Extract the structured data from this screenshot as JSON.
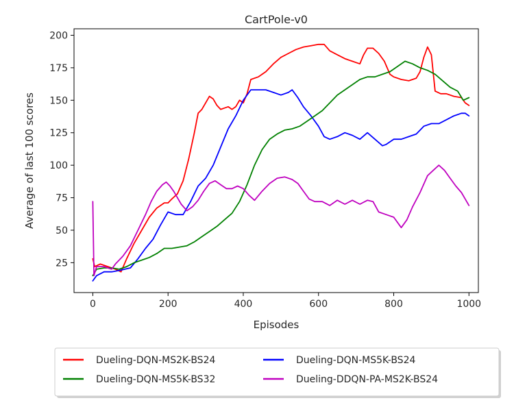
{
  "chart_data": {
    "type": "line",
    "title": "CartPole-v0",
    "xlabel": "Episodes",
    "ylabel": "Average of last 100 scores",
    "xlim": [
      -50,
      1025
    ],
    "ylim": [
      2,
      205
    ],
    "xticks": [
      0,
      200,
      400,
      600,
      800,
      1000
    ],
    "yticks": [
      25,
      50,
      75,
      100,
      125,
      150,
      175,
      200
    ],
    "grid": false,
    "legend_position": "below-plot",
    "series": [
      {
        "name": "Dueling-DQN-MS2K-BS24",
        "color": "#ff0000",
        "x": [
          0,
          5,
          20,
          40,
          60,
          75,
          90,
          110,
          130,
          150,
          170,
          190,
          200,
          210,
          225,
          240,
          255,
          270,
          280,
          290,
          300,
          310,
          320,
          330,
          340,
          350,
          360,
          370,
          380,
          390,
          400,
          410,
          420,
          440,
          460,
          480,
          500,
          520,
          540,
          560,
          580,
          600,
          615,
          630,
          650,
          670,
          690,
          710,
          720,
          730,
          745,
          760,
          775,
          790,
          800,
          820,
          840,
          860,
          870,
          880,
          890,
          900,
          910,
          925,
          940,
          960,
          980,
          990,
          1000
        ],
        "y": [
          28,
          22,
          24,
          22,
          20,
          18,
          28,
          40,
          50,
          60,
          67,
          71,
          71,
          74,
          78,
          88,
          105,
          125,
          140,
          143,
          148,
          153,
          151,
          146,
          143,
          144,
          145,
          143,
          145,
          150,
          148,
          155,
          166,
          168,
          172,
          178,
          183,
          186,
          189,
          191,
          192,
          193,
          193,
          188,
          185,
          182,
          180,
          178,
          185,
          190,
          190,
          186,
          180,
          170,
          168,
          166,
          165,
          167,
          172,
          183,
          191,
          185,
          157,
          155,
          155,
          153,
          152,
          148,
          146
        ]
      },
      {
        "name": "Dueling-DQN-MS5K-BS24",
        "color": "#0000ff",
        "x": [
          0,
          10,
          30,
          50,
          70,
          85,
          100,
          120,
          140,
          160,
          180,
          200,
          220,
          240,
          260,
          280,
          300,
          320,
          340,
          360,
          380,
          400,
          420,
          440,
          460,
          480,
          500,
          520,
          530,
          545,
          560,
          580,
          600,
          615,
          630,
          650,
          670,
          690,
          710,
          730,
          750,
          770,
          780,
          800,
          820,
          840,
          860,
          880,
          900,
          920,
          940,
          960,
          980,
          990,
          1000
        ],
        "y": [
          11,
          15,
          18,
          18,
          19,
          20,
          21,
          28,
          36,
          43,
          54,
          64,
          62,
          62,
          72,
          84,
          90,
          100,
          114,
          128,
          138,
          150,
          158,
          158,
          158,
          156,
          154,
          156,
          158,
          152,
          145,
          138,
          130,
          122,
          120,
          122,
          125,
          123,
          120,
          125,
          120,
          115,
          116,
          120,
          120,
          122,
          124,
          130,
          132,
          132,
          135,
          138,
          140,
          140,
          138
        ]
      },
      {
        "name": "Dueling-DQN-MS5K-BS32",
        "color": "#008000",
        "x": [
          0,
          10,
          30,
          50,
          70,
          90,
          110,
          130,
          150,
          170,
          190,
          210,
          230,
          250,
          270,
          290,
          310,
          330,
          350,
          370,
          390,
          410,
          430,
          450,
          470,
          490,
          510,
          530,
          550,
          570,
          590,
          610,
          630,
          650,
          670,
          690,
          710,
          730,
          750,
          770,
          790,
          810,
          830,
          850,
          870,
          890,
          910,
          930,
          950,
          970,
          985,
          1000
        ],
        "y": [
          15,
          20,
          21,
          21,
          20,
          22,
          25,
          27,
          29,
          32,
          36,
          36,
          37,
          38,
          41,
          45,
          49,
          53,
          58,
          63,
          72,
          85,
          100,
          112,
          120,
          124,
          127,
          128,
          130,
          134,
          138,
          142,
          148,
          154,
          158,
          162,
          166,
          168,
          168,
          170,
          172,
          176,
          180,
          178,
          175,
          173,
          170,
          165,
          160,
          157,
          150,
          152
        ]
      },
      {
        "name": "Dueling-DDQN-PA-MS2K-BS24",
        "color": "#bf00bf",
        "x": [
          0,
          3,
          10,
          30,
          50,
          60,
          80,
          100,
          120,
          140,
          155,
          170,
          185,
          195,
          205,
          215,
          225,
          235,
          250,
          265,
          280,
          295,
          310,
          325,
          340,
          355,
          370,
          385,
          400,
          415,
          430,
          450,
          470,
          490,
          510,
          530,
          545,
          560,
          575,
          590,
          610,
          630,
          650,
          670,
          690,
          710,
          730,
          745,
          760,
          780,
          800,
          820,
          835,
          850,
          870,
          890,
          905,
          920,
          935,
          950,
          965,
          980,
          990,
          1000
        ],
        "y": [
          72,
          15,
          22,
          22,
          20,
          24,
          30,
          38,
          50,
          62,
          72,
          80,
          85,
          87,
          84,
          80,
          75,
          70,
          65,
          68,
          73,
          80,
          86,
          88,
          85,
          82,
          82,
          84,
          82,
          77,
          73,
          80,
          86,
          90,
          91,
          89,
          86,
          80,
          74,
          72,
          72,
          69,
          73,
          70,
          73,
          70,
          73,
          72,
          64,
          62,
          60,
          52,
          58,
          68,
          79,
          92,
          96,
          100,
          96,
          90,
          84,
          79,
          74,
          69
        ]
      }
    ]
  }
}
